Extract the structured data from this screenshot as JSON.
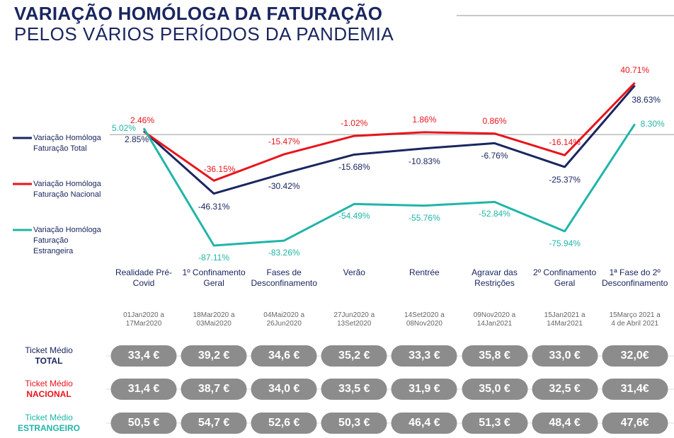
{
  "chart_data": {
    "type": "line",
    "title": "VARIAÇÃO HOMÓLOGA DA FATURAÇÃO",
    "subtitle": "PELOS VÁRIOS PERÍODOS DA PANDEMIA",
    "categories": [
      "Realidade Pré-Covid",
      "1º Confinamento Geral",
      "Fases de Desconfinamento",
      "Verão",
      "Rentrée",
      "Agravar das Restrições",
      "2º Confinamento Geral",
      "1ª Fase do 2º Desconfinamento"
    ],
    "periods": [
      "01Jan2020 a 17Mar2020",
      "18Mar2020 a 03Mai2020",
      "04Mai2020 a 26Jun2020",
      "27Jun2020 a 13Set2020",
      "14Set2020 a 08Nov2020",
      "09Nov2020 a 14Jan2021",
      "15Jan2021 a 14Mar2021",
      "15Março 2021 a 4 de Abril 2021"
    ],
    "series": [
      {
        "name": "Variação Homóloga Faturação Total",
        "color": "#1a2660",
        "values": [
          2.85,
          -46.31,
          -30.42,
          -15.68,
          -10.83,
          -6.76,
          -25.37,
          38.63
        ],
        "value_labels": [
          "2.85%",
          "-46.31%",
          "-30.42%",
          "-15.68%",
          "-10.83%",
          "-6.76%",
          "-25.37%",
          "38.63%"
        ]
      },
      {
        "name": "Variação Homóloga Faturação Nacional",
        "color": "#e8141b",
        "values": [
          2.46,
          -36.15,
          -15.47,
          -1.02,
          1.86,
          0.86,
          -16.14,
          40.71
        ],
        "value_labels": [
          "2.46%",
          "-36.15%",
          "-15.47%",
          "-1.02%",
          "1.86%",
          "0.86%",
          "-16.14%",
          "40.71%"
        ]
      },
      {
        "name": "Variação Homóloga Faturação Estrangeira",
        "color": "#20b5a8",
        "values": [
          5.02,
          -87.11,
          -83.26,
          -54.49,
          -55.76,
          -52.84,
          -75.94,
          8.3
        ],
        "value_labels": [
          "5.02%",
          "-87.11%",
          "-83.26%",
          "-54.49%",
          "-55.76%",
          "-52.84%",
          "-75.94%",
          "8.30%"
        ]
      }
    ]
  },
  "ticket_table": {
    "rows": [
      {
        "label": "Ticket Médio",
        "group": "TOTAL",
        "color": "#1a2660",
        "values": [
          "33,4 €",
          "39,2 €",
          "34,6 €",
          "35,2 €",
          "33,3 €",
          "35,8 €",
          "33,0 €",
          "32,0€"
        ]
      },
      {
        "label": "Ticket Médio",
        "group": "NACIONAL",
        "color": "#e8141b",
        "values": [
          "31,4 €",
          "38,7 €",
          "34,0 €",
          "33,5 €",
          "31,9 €",
          "35,0 €",
          "32,5 €",
          "31,4€"
        ]
      },
      {
        "label": "Ticket Médio",
        "group": "ESTRANGEIRO",
        "color": "#20b5a8",
        "values": [
          "50,5 €",
          "54,7 €",
          "52,6 €",
          "50,3 €",
          "46,4 €",
          "51,3 €",
          "48,4 €",
          "47,6€"
        ]
      }
    ]
  }
}
